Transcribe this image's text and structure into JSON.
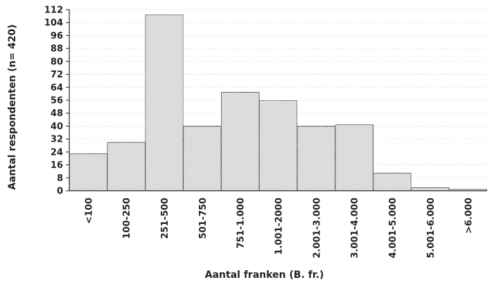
{
  "chart_data": {
    "type": "bar",
    "title": "",
    "xlabel": "Aantal franken (B. fr.)",
    "ylabel": "Aantal respondenten (n= 420)",
    "categories": [
      "<100",
      "100-250",
      "251-500",
      "501-750",
      "751-1.000",
      "1.001-2000",
      "2.001-3.000",
      "3.001-4.000",
      "4.001-5.000",
      "5.001-6.000",
      ">6.000"
    ],
    "values": [
      23,
      30,
      109,
      40,
      61,
      56,
      40,
      41,
      11,
      2,
      1
    ],
    "ylim": [
      0,
      112
    ],
    "yticks": [
      0,
      8,
      16,
      24,
      32,
      40,
      48,
      56,
      64,
      72,
      80,
      88,
      96,
      104,
      112
    ],
    "grid": true,
    "legend": "none",
    "bar_color": "#e2e2e2"
  }
}
